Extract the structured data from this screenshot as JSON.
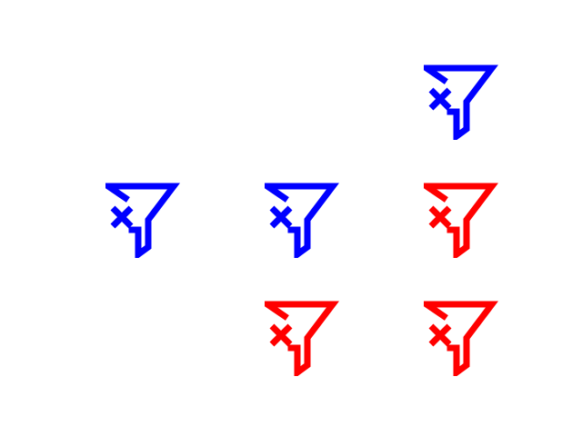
{
  "icon": "clear-filter-icon",
  "colors": {
    "blue": "#0000ff",
    "red": "#ff0000"
  },
  "glyphs": [
    {
      "row": 0,
      "col": 2,
      "color": "blue"
    },
    {
      "row": 1,
      "col": 0,
      "color": "blue"
    },
    {
      "row": 1,
      "col": 1,
      "color": "blue"
    },
    {
      "row": 1,
      "col": 2,
      "color": "red"
    },
    {
      "row": 2,
      "col": 1,
      "color": "red"
    },
    {
      "row": 2,
      "col": 2,
      "color": "red"
    }
  ]
}
